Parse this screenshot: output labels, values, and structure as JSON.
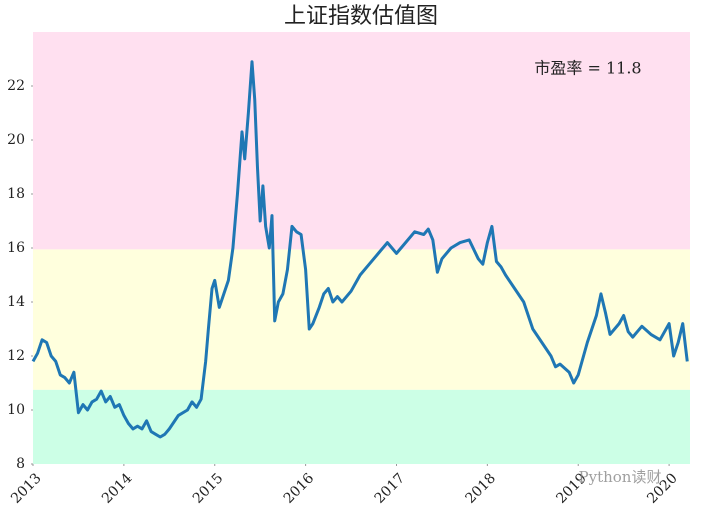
{
  "chart_data": {
    "type": "line",
    "title": "上证指数估值图",
    "annotation": "市盈率 = 11.8",
    "watermark": "Python读财",
    "x": [
      2013.0,
      2013.05,
      2013.1,
      2013.15,
      2013.2,
      2013.25,
      2013.3,
      2013.35,
      2013.4,
      2013.45,
      2013.5,
      2013.55,
      2013.6,
      2013.65,
      2013.7,
      2013.75,
      2013.8,
      2013.85,
      2013.9,
      2013.95,
      2014.0,
      2014.05,
      2014.1,
      2014.15,
      2014.2,
      2014.25,
      2014.3,
      2014.35,
      2014.4,
      2014.45,
      2014.5,
      2014.6,
      2014.7,
      2014.75,
      2014.8,
      2014.85,
      2014.9,
      2014.93,
      2014.97,
      2015.0,
      2015.05,
      2015.1,
      2015.15,
      2015.2,
      2015.25,
      2015.3,
      2015.33,
      2015.37,
      2015.41,
      2015.44,
      2015.47,
      2015.5,
      2015.53,
      2015.56,
      2015.6,
      2015.63,
      2015.66,
      2015.7,
      2015.75,
      2015.8,
      2015.85,
      2015.9,
      2015.95,
      2016.0,
      2016.04,
      2016.08,
      2016.15,
      2016.2,
      2016.25,
      2016.3,
      2016.35,
      2016.4,
      2016.5,
      2016.6,
      2016.7,
      2016.8,
      2016.9,
      2017.0,
      2017.1,
      2017.2,
      2017.3,
      2017.35,
      2017.4,
      2017.45,
      2017.5,
      2017.6,
      2017.7,
      2017.8,
      2017.9,
      2017.95,
      2018.0,
      2018.05,
      2018.1,
      2018.15,
      2018.2,
      2018.3,
      2018.4,
      2018.45,
      2018.5,
      2018.6,
      2018.7,
      2018.75,
      2018.8,
      2018.9,
      2018.95,
      2019.0,
      2019.1,
      2019.2,
      2019.25,
      2019.3,
      2019.35,
      2019.45,
      2019.5,
      2019.55,
      2019.6,
      2019.7,
      2019.8,
      2019.9,
      2020.0,
      2020.05,
      2020.1,
      2020.15,
      2020.2
    ],
    "series": [
      {
        "name": "市盈率",
        "color": "#1f77b4",
        "values": [
          11.8,
          12.1,
          12.6,
          12.5,
          12.0,
          11.8,
          11.3,
          11.2,
          11.0,
          11.4,
          9.9,
          10.2,
          10.0,
          10.3,
          10.4,
          10.7,
          10.3,
          10.5,
          10.1,
          10.2,
          9.8,
          9.5,
          9.3,
          9.4,
          9.3,
          9.6,
          9.2,
          9.1,
          9.0,
          9.1,
          9.3,
          9.8,
          10.0,
          10.3,
          10.1,
          10.4,
          11.8,
          13.0,
          14.5,
          14.8,
          13.8,
          14.3,
          14.8,
          16.0,
          18.0,
          20.3,
          19.3,
          21.0,
          22.9,
          21.5,
          19.0,
          17.0,
          18.3,
          16.8,
          16.0,
          17.2,
          13.3,
          14.0,
          14.3,
          15.2,
          16.8,
          16.6,
          16.5,
          15.2,
          13.0,
          13.2,
          13.8,
          14.3,
          14.5,
          14.0,
          14.2,
          14.0,
          14.4,
          15.0,
          15.4,
          15.8,
          16.2,
          15.8,
          16.2,
          16.6,
          16.5,
          16.7,
          16.3,
          15.1,
          15.6,
          16.0,
          16.2,
          16.3,
          15.6,
          15.4,
          16.2,
          16.8,
          15.5,
          15.3,
          15.0,
          14.5,
          14.0,
          13.5,
          13.0,
          12.5,
          12.0,
          11.6,
          11.7,
          11.4,
          11.0,
          11.3,
          12.5,
          13.5,
          14.3,
          13.6,
          12.8,
          13.2,
          13.5,
          12.9,
          12.7,
          13.1,
          12.8,
          12.6,
          13.2,
          12.0,
          12.5,
          13.2,
          11.8
        ]
      }
    ],
    "bands": [
      {
        "from": 8,
        "to": 10.75,
        "color": "#ccffe6"
      },
      {
        "from": 10.75,
        "to": 15.95,
        "color": "#ffffdd"
      },
      {
        "from": 15.95,
        "to": 24,
        "color": "#ffe0f0"
      }
    ],
    "xlim": [
      2013,
      2020.23
    ],
    "xticks": [
      2013,
      2014,
      2015,
      2016,
      2017,
      2018,
      2019,
      2020
    ],
    "ylim": [
      8,
      24
    ],
    "yticks": [
      8,
      10,
      12,
      14,
      16,
      18,
      20,
      22
    ]
  }
}
